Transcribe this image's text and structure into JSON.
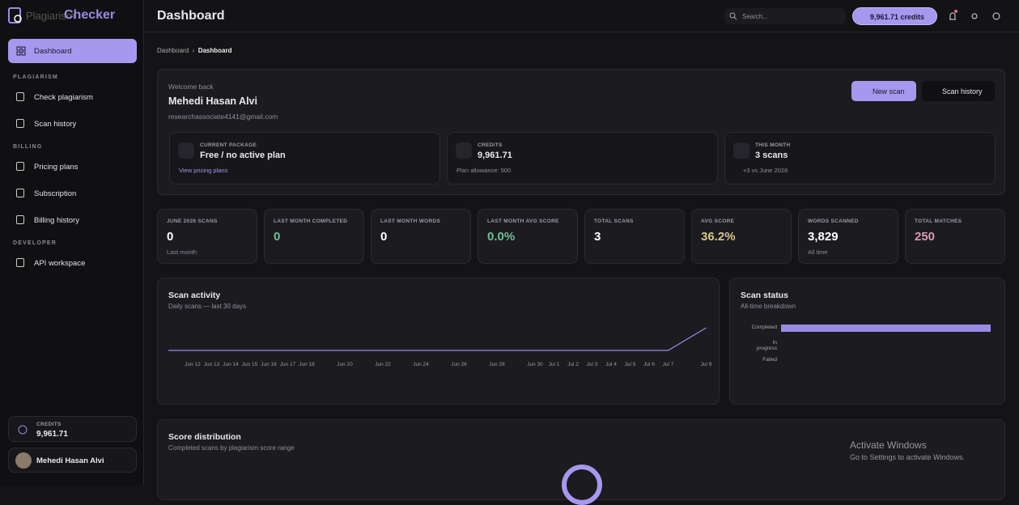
{
  "sidebar": {
    "brand": "Plagiarism",
    "brand_accent": "Checker",
    "active": "Dashboard",
    "sections": [
      {
        "title": "PLAGIARISM",
        "items": [
          "Check plagiarism",
          "Scan history"
        ]
      },
      {
        "title": "BILLING",
        "items": [
          "Pricing plans",
          "Subscription",
          "Billing history"
        ]
      },
      {
        "title": "DEVELOPER",
        "items": [
          "API workspace"
        ]
      }
    ],
    "credits_label": "CREDITS",
    "credits_value": "9,961.71",
    "user": "Mehedi Hasan Alvi"
  },
  "header": {
    "title": "Dashboard",
    "search": "Search...",
    "credits": "9,961.71 credits"
  },
  "breadcrumb": [
    "Dashboard",
    "Dashboard"
  ],
  "welcome": {
    "greeting": "Welcome back",
    "name": "Mehedi Hasan Alvi",
    "email": "researchassociate4141@gmail.com",
    "primary_button": "New scan",
    "secondary_button": "Scan history"
  },
  "info_cards": [
    {
      "label": "CURRENT PACKAGE",
      "value": "Free / no active plan",
      "note": "View pricing plans"
    },
    {
      "label": "CREDITS",
      "value": "9,961.71",
      "note": "Plan allowance: 500"
    },
    {
      "label": "THIS MONTH",
      "value": "3 scans",
      "note": "+3 vs June 2026"
    }
  ],
  "stats": [
    {
      "label": "JUNE 2026 SCANS",
      "value": "0",
      "note": "Last month",
      "color": "#ffffff"
    },
    {
      "label": "LAST MONTH COMPLETED",
      "value": "0",
      "color": "#6fbf95"
    },
    {
      "label": "LAST MONTH WORDS",
      "value": "0",
      "color": "#ffffff"
    },
    {
      "label": "LAST MONTH AVG SCORE",
      "value": "0.0%",
      "color": "#6fbf95"
    },
    {
      "label": "TOTAL SCANS",
      "value": "3",
      "color": "#ffffff"
    },
    {
      "label": "AVG SCORE",
      "value": "36.2%",
      "color": "#d9c48a"
    },
    {
      "label": "WORDS SCANNED",
      "value": "3,829",
      "note": "All time",
      "color": "#ffffff"
    },
    {
      "label": "TOTAL MATCHES",
      "value": "250",
      "color": "#d99ab0"
    }
  ],
  "chart_data": [
    {
      "type": "line",
      "title": "Scan activity",
      "subtitle": "Daily scans — last 30 days",
      "color": "#9b8ae6",
      "categories": [
        "Jun 12",
        "Jun 13",
        "Jun 14",
        "Jun 15",
        "Jun 16",
        "Jun 17",
        "Jun 18",
        "Jun 20",
        "Jun 22",
        "Jun 24",
        "Jun 26",
        "Jun 28",
        "Jun 30",
        "Jul 1",
        "Jul 2",
        "Jul 3",
        "Jul 4",
        "Jul 5",
        "Jul 6",
        "Jul 7",
        "Jul 9"
      ],
      "values": [
        0,
        0,
        0,
        0,
        0,
        0,
        0,
        0,
        0,
        0,
        0,
        0,
        0,
        0,
        0,
        0,
        0,
        0,
        0,
        0,
        3
      ]
    },
    {
      "type": "bar",
      "title": "Scan status",
      "subtitle": "All-time breakdown",
      "color": "#9b8ae6",
      "categories": [
        "Completed",
        "In progress",
        "Failed"
      ],
      "values": [
        3,
        0,
        0
      ]
    }
  ],
  "score_distribution": {
    "title": "Score distribution",
    "subtitle": "Completed scans by plagiarism score range"
  },
  "watermark": {
    "title": "Activate Windows",
    "text": "Go to Settings to activate Windows."
  }
}
